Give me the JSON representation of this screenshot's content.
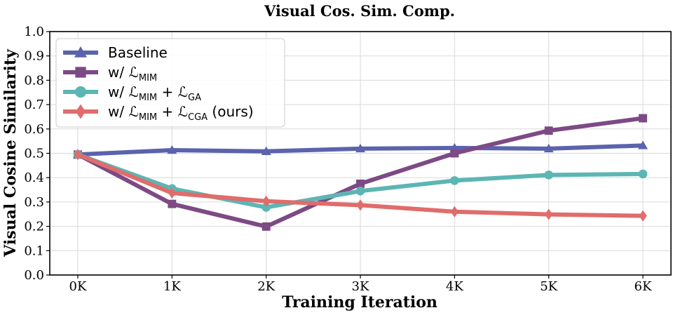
{
  "chart_data": {
    "type": "line",
    "title": "Visual Cos. Sim. Comp.",
    "xlabel": "Training Iteration",
    "ylabel": "Visual Cosine Similarity",
    "categories": [
      "0K",
      "1K",
      "2K",
      "3K",
      "4K",
      "5K",
      "6K"
    ],
    "ylim": [
      0.0,
      1.0
    ],
    "yticks": [
      "0.0",
      "0.1",
      "0.2",
      "0.3",
      "0.4",
      "0.5",
      "0.6",
      "0.7",
      "0.8",
      "0.9",
      "1.0"
    ],
    "grid": true,
    "legend_position": "top-left",
    "series": [
      {
        "name": "Baseline",
        "legend": {
          "prefix": "Baseline",
          "parts": []
        },
        "color": "#5b63ad",
        "marker": "triangle",
        "values": [
          0.495,
          0.513,
          0.508,
          0.519,
          0.522,
          0.519,
          0.532
        ]
      },
      {
        "name": "w/ L_MIM",
        "legend": {
          "prefix": "w/ ",
          "parts": [
            {
              "sym": "ℒ",
              "sub": "MIM",
              "after": ""
            }
          ]
        },
        "color": "#7d4a85",
        "marker": "square",
        "values": [
          0.495,
          0.292,
          0.199,
          0.375,
          0.5,
          0.593,
          0.644
        ]
      },
      {
        "name": "w/ L_MIM + L_GA",
        "legend": {
          "prefix": "w/ ",
          "parts": [
            {
              "sym": "ℒ",
              "sub": "MIM",
              "after": " + "
            },
            {
              "sym": "ℒ",
              "sub": "GA",
              "after": ""
            }
          ]
        },
        "color": "#5cb6b3",
        "marker": "circle",
        "values": [
          0.495,
          0.355,
          0.278,
          0.345,
          0.388,
          0.411,
          0.415
        ]
      },
      {
        "name": "w/ L_MIM + L_CGA (ours)",
        "legend": {
          "prefix": "w/ ",
          "parts": [
            {
              "sym": "ℒ",
              "sub": "MIM",
              "after": " + "
            },
            {
              "sym": "ℒ",
              "sub": "CGA",
              "after": " (ours)"
            }
          ]
        },
        "color": "#e06c6c",
        "marker": "diamond",
        "values": [
          0.495,
          0.337,
          0.303,
          0.287,
          0.26,
          0.249,
          0.243
        ]
      }
    ]
  }
}
